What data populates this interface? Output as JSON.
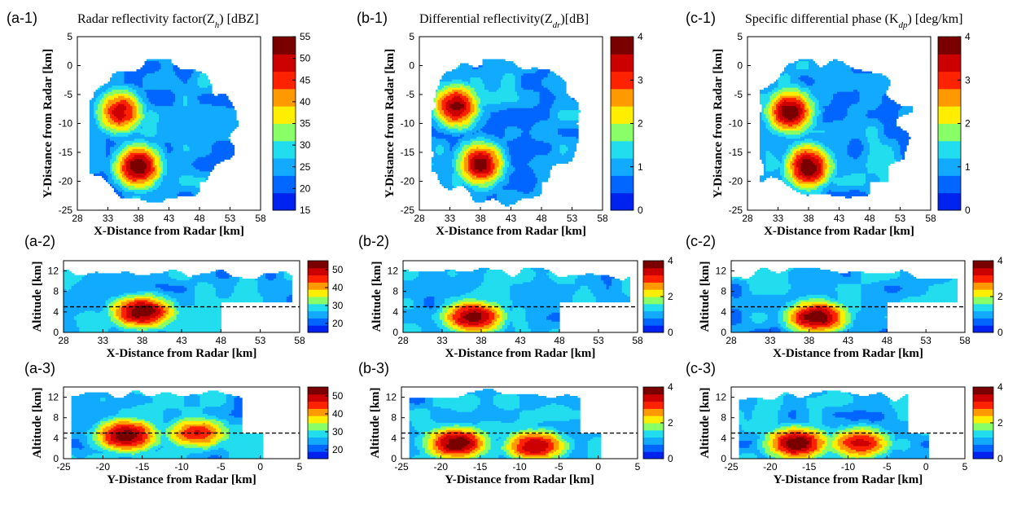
{
  "colors": {
    "scale": [
      "#0022ee",
      "#0066ff",
      "#11aaff",
      "#22ddee",
      "#88ff66",
      "#ffee00",
      "#ff9900",
      "#ff2200",
      "#cc0000",
      "#7a0000"
    ],
    "contour": "#1a1a1a",
    "frame": "#000000"
  },
  "chart_data": [
    {
      "id": "a1",
      "type": "heatmap",
      "panel_label": "(a-1)",
      "title": "Radar reflectivity  factor(Z",
      "title_sub": "h",
      "title_tail": ") [dBZ]",
      "xlabel": "X-Distance from Radar [km]",
      "ylabel": "Y-Distance from Radar [km]",
      "xlim": [
        28,
        58
      ],
      "ylim": [
        -25,
        5
      ],
      "xticks": [
        28,
        33,
        38,
        43,
        48,
        53,
        58
      ],
      "yticks": [
        5,
        0,
        -5,
        -10,
        -15,
        -20,
        -25
      ],
      "cbar_ticks": [
        55,
        50,
        45,
        40,
        35,
        30,
        25,
        20,
        15
      ],
      "cbar_range": [
        15,
        55
      ],
      "cores": [
        {
          "x": 35,
          "y": -8,
          "v": 48
        },
        {
          "x": 38,
          "y": -17.5,
          "v": 53
        }
      ]
    },
    {
      "id": "b1",
      "type": "heatmap",
      "panel_label": "(b-1)",
      "title": "Differential  reflectivity(Z",
      "title_sub": "dr",
      "title_tail": ")[dB]",
      "xlabel": "X-Distance from Radar [km]",
      "ylabel": "Y-Distance from Radar [km]",
      "xlim": [
        28,
        58
      ],
      "ylim": [
        -25,
        5
      ],
      "xticks": [
        28,
        33,
        38,
        43,
        48,
        53,
        58
      ],
      "yticks": [
        5,
        0,
        -5,
        -10,
        -15,
        -20,
        -25
      ],
      "cbar_ticks": [
        4,
        3,
        2,
        1,
        0
      ],
      "cbar_range": [
        0,
        4
      ],
      "cores": [
        {
          "x": 34,
          "y": -7,
          "v": 3.6
        },
        {
          "x": 38,
          "y": -17,
          "v": 3.6
        }
      ]
    },
    {
      "id": "c1",
      "type": "heatmap",
      "panel_label": "(c-1)",
      "title": "Specific differential phase (K",
      "title_sub": "dp",
      "title_tail": ") [deg/km]",
      "xlabel": "X-Distance from Radar [km]",
      "ylabel": "Y-Distance from Radar [km]",
      "xlim": [
        28,
        58
      ],
      "ylim": [
        -25,
        5
      ],
      "xticks": [
        28,
        33,
        38,
        43,
        48,
        53,
        58
      ],
      "yticks": [
        5,
        0,
        -5,
        -10,
        -15,
        -20,
        -25
      ],
      "cbar_ticks": [
        4,
        3,
        2,
        1,
        0
      ],
      "cbar_range": [
        0,
        4
      ],
      "cores": [
        {
          "x": 35,
          "y": -8,
          "v": 3.8
        },
        {
          "x": 38,
          "y": -17.5,
          "v": 3.8
        }
      ]
    },
    {
      "id": "a2",
      "type": "heatmap",
      "panel_label": "(a-2)",
      "xlabel": "X-Distance from Radar [km]",
      "ylabel": "Altitude [km]",
      "xlim": [
        28,
        58
      ],
      "ylim": [
        0,
        14
      ],
      "xticks": [
        28,
        33,
        38,
        43,
        48,
        53,
        58
      ],
      "yticks": [
        12,
        8,
        4,
        0
      ],
      "cbar_ticks": [
        50,
        40,
        30,
        20
      ],
      "cbar_range": [
        15,
        55
      ],
      "dashed_y": 5,
      "cores": [
        {
          "x": 38,
          "y": 4,
          "v": 53
        }
      ]
    },
    {
      "id": "b2",
      "type": "heatmap",
      "panel_label": "(b-2)",
      "xlabel": "X-Distance from Radar [km]",
      "ylabel": "Altitude [km]",
      "xlim": [
        28,
        58
      ],
      "ylim": [
        0,
        14
      ],
      "xticks": [
        28,
        33,
        38,
        43,
        48,
        53,
        58
      ],
      "yticks": [
        12,
        8,
        4,
        0
      ],
      "cbar_ticks": [
        4,
        2,
        0
      ],
      "cbar_range": [
        0,
        4
      ],
      "dashed_y": 5,
      "cores": [
        {
          "x": 37,
          "y": 3,
          "v": 3.7
        }
      ]
    },
    {
      "id": "c2",
      "type": "heatmap",
      "panel_label": "(c-2)",
      "xlabel": "X-Distance from Radar [km]",
      "ylabel": "Altitude [km]",
      "xlim": [
        28,
        58
      ],
      "ylim": [
        0,
        14
      ],
      "xticks": [
        28,
        33,
        38,
        43,
        48,
        53,
        58
      ],
      "yticks": [
        12,
        8,
        4,
        0
      ],
      "cbar_ticks": [
        4,
        2,
        0
      ],
      "cbar_range": [
        0,
        4
      ],
      "dashed_y": 5,
      "cores": [
        {
          "x": 39,
          "y": 3,
          "v": 3.8
        }
      ]
    },
    {
      "id": "a3",
      "type": "heatmap",
      "panel_label": "(a-3)",
      "xlabel": "Y-Distance from Radar [km]",
      "ylabel": "Altitude [km]",
      "xlim": [
        -25,
        5
      ],
      "ylim": [
        0,
        14
      ],
      "xticks": [
        -25,
        -20,
        -15,
        -10,
        -5,
        0,
        5
      ],
      "yticks": [
        12,
        8,
        4,
        0
      ],
      "cbar_ticks": [
        50,
        40,
        30,
        20
      ],
      "cbar_range": [
        15,
        55
      ],
      "dashed_y": 5,
      "cores": [
        {
          "x": -17,
          "y": 4.5,
          "v": 53
        },
        {
          "x": -8,
          "y": 5,
          "v": 45
        }
      ]
    },
    {
      "id": "b3",
      "type": "heatmap",
      "panel_label": "(b-3)",
      "xlabel": "Y-Distance from Radar [km]",
      "ylabel": "Altitude [km]",
      "xlim": [
        -25,
        5
      ],
      "ylim": [
        0,
        14
      ],
      "xticks": [
        -25,
        -20,
        -15,
        -10,
        -5,
        0,
        5
      ],
      "yticks": [
        12,
        8,
        4,
        0
      ],
      "cbar_ticks": [
        4,
        2,
        0
      ],
      "cbar_range": [
        0,
        4
      ],
      "dashed_y": 5,
      "cores": [
        {
          "x": -18,
          "y": 3,
          "v": 3.8
        },
        {
          "x": -8,
          "y": 2.5,
          "v": 3.4
        }
      ]
    },
    {
      "id": "c3",
      "type": "heatmap",
      "panel_label": "(c-3)",
      "xlabel": "Y-Distance from Radar [km]",
      "ylabel": "Altitude [km]",
      "xlim": [
        -25,
        5
      ],
      "ylim": [
        0,
        14
      ],
      "xticks": [
        -25,
        -20,
        -15,
        -10,
        -5,
        0,
        5
      ],
      "yticks": [
        12,
        8,
        4,
        0
      ],
      "cbar_ticks": [
        4,
        2,
        0
      ],
      "cbar_range": [
        0,
        4
      ],
      "dashed_y": 5,
      "cores": [
        {
          "x": -16.5,
          "y": 3,
          "v": 3.8
        },
        {
          "x": -8.5,
          "y": 3,
          "v": 3.2
        }
      ]
    }
  ]
}
